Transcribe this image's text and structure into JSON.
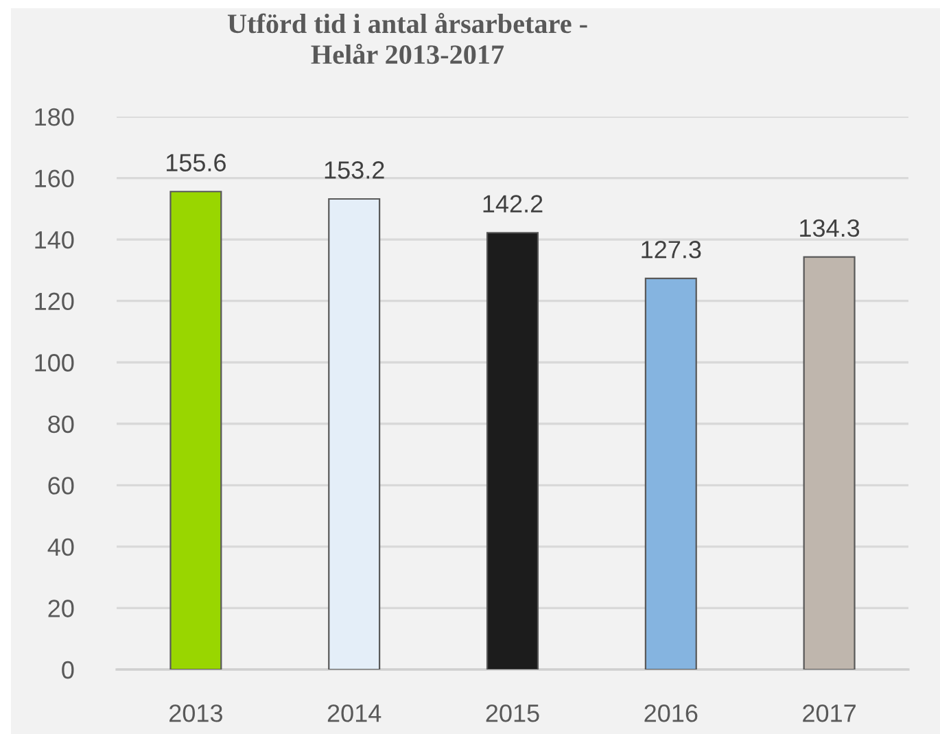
{
  "chart_data": {
    "type": "bar",
    "title": "Utförd tid i antal årsarbetare -\nHelår 2013-2017",
    "categories": [
      "2013",
      "2014",
      "2015",
      "2016",
      "2017"
    ],
    "values": [
      155.6,
      153.2,
      142.2,
      127.3,
      134.3
    ],
    "colors": [
      "#99d600",
      "#e4eef8",
      "#1c1c1c",
      "#85b4e0",
      "#bfb6ad"
    ],
    "ylim": [
      0,
      180
    ],
    "yticks": [
      0,
      20,
      40,
      60,
      80,
      100,
      120,
      140,
      160,
      180
    ],
    "grid": "y",
    "data_labels": true
  }
}
